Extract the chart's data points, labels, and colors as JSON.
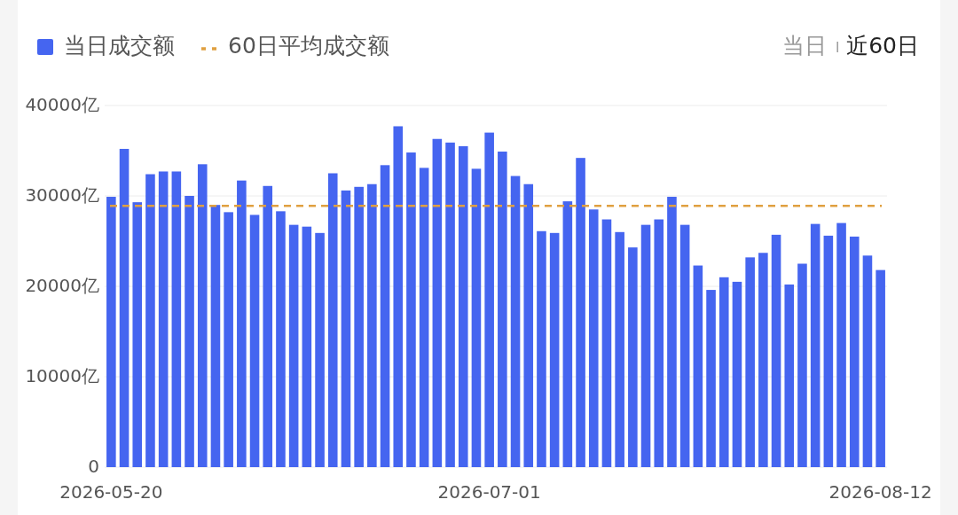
{
  "chart_data": {
    "type": "bar",
    "categories": [
      "2026-05-20",
      null,
      null,
      null,
      null,
      null,
      null,
      null,
      null,
      null,
      null,
      null,
      null,
      null,
      null,
      null,
      null,
      null,
      null,
      null,
      null,
      null,
      null,
      null,
      null,
      null,
      null,
      null,
      null,
      "2026-07-01",
      null,
      null,
      null,
      null,
      null,
      null,
      null,
      null,
      null,
      null,
      null,
      null,
      null,
      null,
      null,
      null,
      null,
      null,
      null,
      null,
      null,
      null,
      null,
      null,
      null,
      null,
      null,
      null,
      null,
      "2026-08-12"
    ],
    "series": [
      {
        "name": "当日成交额",
        "color": "#4565f0",
        "values": [
          29900,
          35200,
          29300,
          32400,
          32700,
          32700,
          30000,
          33500,
          29000,
          28200,
          31700,
          27900,
          31100,
          28300,
          26800,
          26600,
          25900,
          32500,
          30600,
          31000,
          31300,
          33400,
          37700,
          34800,
          33100,
          36300,
          35900,
          35500,
          33000,
          37000,
          34900,
          32200,
          31300,
          26100,
          25900,
          29400,
          34200,
          28500,
          27400,
          26000,
          24300,
          26800,
          27400,
          29900,
          26800,
          22300,
          19600,
          21000,
          20500,
          23200,
          23700,
          25700,
          20200,
          22500,
          26900,
          25600,
          27000,
          25500,
          23400,
          21800
        ]
      }
    ],
    "ylim": [
      0,
      40000
    ],
    "yticks": [
      {
        "value": 0,
        "label": "0"
      },
      {
        "value": 10000,
        "label": "10000亿"
      },
      {
        "value": 20000,
        "label": "20000亿"
      },
      {
        "value": 30000,
        "label": "30000亿"
      },
      {
        "value": 40000,
        "label": "40000亿"
      }
    ],
    "grid": "y",
    "legend": "top left",
    "ref_lines": [
      {
        "axis": "y",
        "value": 28900,
        "label": "60日平均成交额",
        "color": "#e0a040",
        "line_style": "dashed"
      }
    ],
    "annotations": [
      "当日",
      "近60日"
    ]
  }
}
